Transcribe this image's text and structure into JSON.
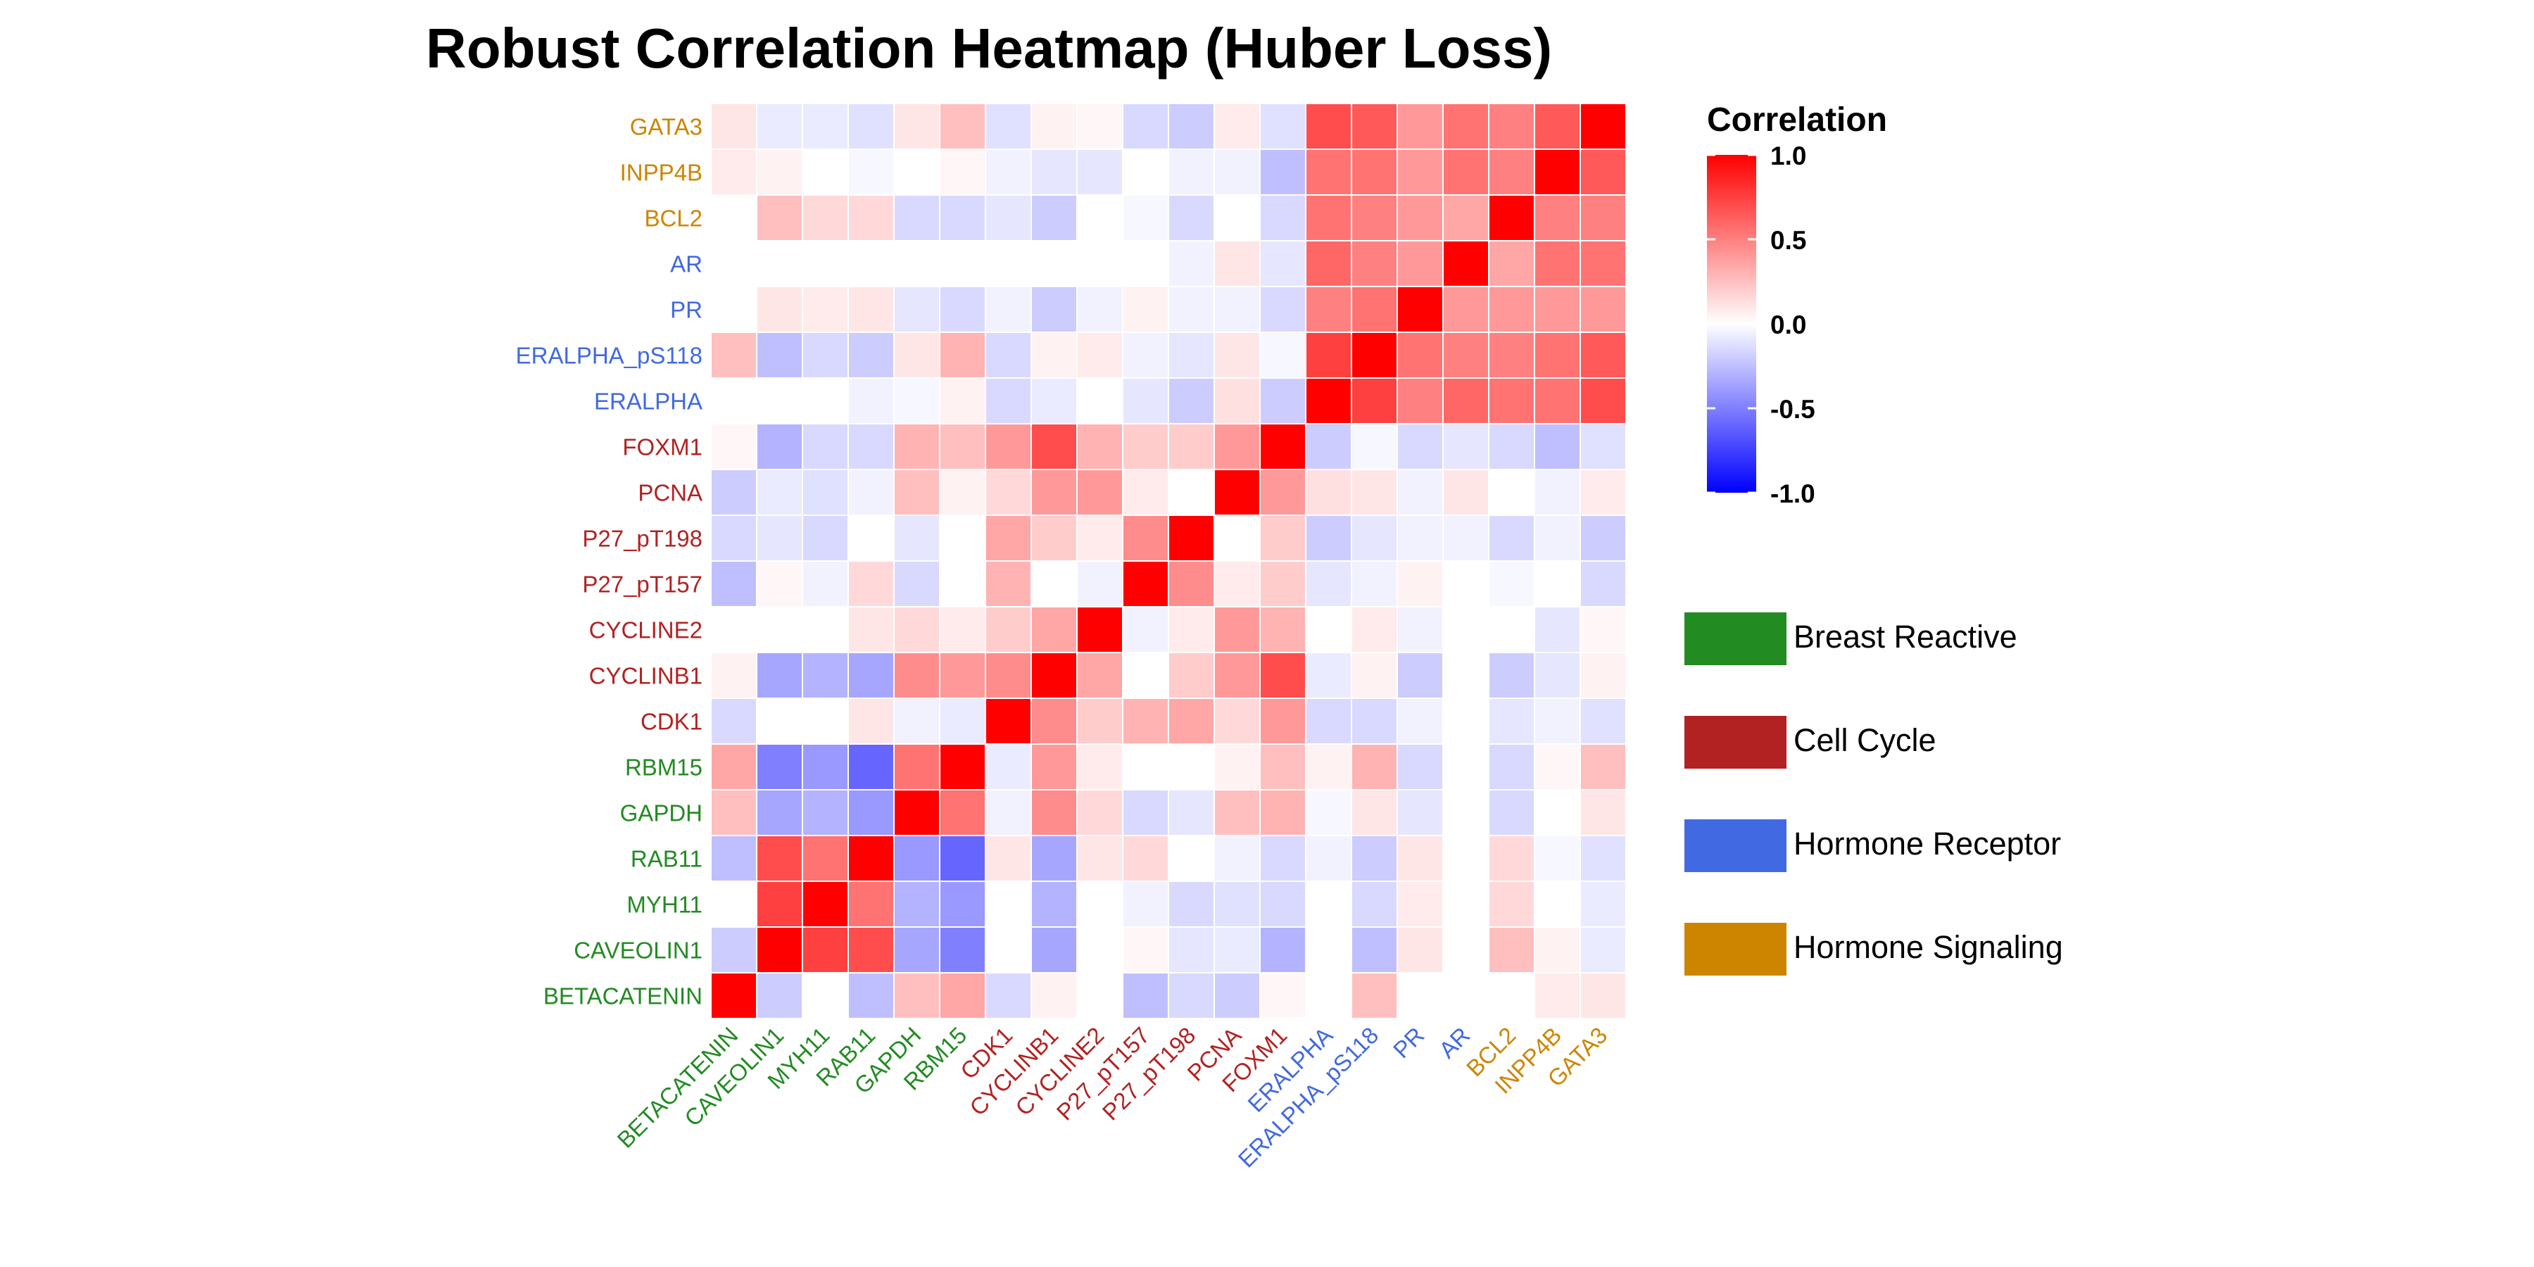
{
  "chart_data": {
    "type": "heatmap",
    "title": "Robust Correlation Heatmap (Huber Loss)",
    "xlabel": "",
    "ylabel": "",
    "variables": [
      "BETACATENIN",
      "CAVEOLIN1",
      "MYH11",
      "RAB11",
      "GAPDH",
      "RBM15",
      "CDK1",
      "CYCLINB1",
      "CYCLINE2",
      "P27_pT157",
      "P27_pT198",
      "PCNA",
      "FOXM1",
      "ERALPHA",
      "ERALPHA_pS118",
      "PR",
      "AR",
      "BCL2",
      "INPP4B",
      "GATA3"
    ],
    "groups_of_variables": [
      "Breast Reactive",
      "Breast Reactive",
      "Breast Reactive",
      "Breast Reactive",
      "Breast Reactive",
      "Breast Reactive",
      "Cell Cycle",
      "Cell Cycle",
      "Cell Cycle",
      "Cell Cycle",
      "Cell Cycle",
      "Cell Cycle",
      "Cell Cycle",
      "Hormone Receptor",
      "Hormone Receptor",
      "Hormone Receptor",
      "Hormone Receptor",
      "Hormone Signaling",
      "Hormone Signaling",
      "Hormone Signaling"
    ],
    "groups": [
      {
        "name": "Breast Reactive",
        "color": "#228B22"
      },
      {
        "name": "Cell Cycle",
        "color": "#B22222"
      },
      {
        "name": "Hormone Receptor",
        "color": "#4169E1"
      },
      {
        "name": "Hormone Signaling",
        "color": "#CD8500"
      }
    ],
    "row_order_top_to_bottom": [
      "GATA3",
      "INPP4B",
      "BCL2",
      "AR",
      "PR",
      "ERALPHA_pS118",
      "ERALPHA",
      "FOXM1",
      "PCNA",
      "P27_pT198",
      "P27_pT157",
      "CYCLINE2",
      "CYCLINB1",
      "CDK1",
      "RBM15",
      "GAPDH",
      "RAB11",
      "MYH11",
      "CAVEOLIN1",
      "BETACATENIN"
    ],
    "values": [
      [
        1.0,
        -0.2,
        0.0,
        -0.25,
        0.25,
        0.35,
        -0.15,
        0.05,
        0.0,
        -0.25,
        -0.15,
        -0.2,
        0.03,
        0.0,
        0.25,
        0.0,
        0.0,
        0.0,
        0.08,
        0.1
      ],
      [
        -0.2,
        1.0,
        0.75,
        0.7,
        -0.35,
        -0.5,
        0.0,
        -0.35,
        0.0,
        0.03,
        -0.1,
        -0.08,
        -0.3,
        0.0,
        -0.25,
        0.1,
        0.0,
        0.25,
        0.05,
        -0.08
      ],
      [
        0.0,
        0.75,
        1.0,
        0.55,
        -0.3,
        -0.4,
        0.0,
        -0.3,
        0.0,
        -0.05,
        -0.15,
        -0.12,
        -0.15,
        0.0,
        -0.15,
        0.08,
        0.0,
        0.15,
        0.0,
        -0.08
      ],
      [
        -0.25,
        0.7,
        0.55,
        1.0,
        -0.4,
        -0.6,
        0.1,
        -0.35,
        0.1,
        0.15,
        0.0,
        -0.05,
        -0.15,
        -0.05,
        -0.2,
        0.1,
        0.0,
        0.15,
        -0.03,
        -0.12
      ],
      [
        0.25,
        -0.35,
        -0.3,
        -0.4,
        1.0,
        0.55,
        -0.05,
        0.45,
        0.15,
        -0.15,
        -0.1,
        0.25,
        0.3,
        -0.03,
        0.1,
        -0.1,
        0.0,
        -0.15,
        0.0,
        0.1
      ],
      [
        0.35,
        -0.5,
        -0.4,
        -0.6,
        0.55,
        1.0,
        -0.08,
        0.4,
        0.08,
        0.0,
        0.0,
        0.05,
        0.25,
        0.05,
        0.3,
        -0.15,
        0.0,
        -0.15,
        0.03,
        0.25
      ],
      [
        -0.15,
        0.0,
        0.0,
        0.1,
        -0.05,
        -0.08,
        1.0,
        0.45,
        0.2,
        0.3,
        0.35,
        0.15,
        0.4,
        -0.15,
        -0.15,
        -0.05,
        0.0,
        -0.1,
        -0.05,
        -0.12
      ],
      [
        0.05,
        -0.35,
        -0.3,
        -0.35,
        0.45,
        0.4,
        0.45,
        1.0,
        0.35,
        0.0,
        0.2,
        0.4,
        0.7,
        -0.08,
        0.05,
        -0.2,
        0.0,
        -0.2,
        -0.1,
        0.05
      ],
      [
        0.0,
        0.0,
        0.0,
        0.1,
        0.15,
        0.08,
        0.2,
        0.35,
        1.0,
        -0.05,
        0.08,
        0.4,
        0.3,
        0.0,
        0.08,
        -0.05,
        0.0,
        0.0,
        -0.1,
        0.03
      ],
      [
        -0.25,
        0.03,
        -0.05,
        0.15,
        -0.15,
        0.0,
        0.3,
        0.0,
        -0.05,
        1.0,
        0.45,
        0.08,
        0.2,
        -0.1,
        -0.05,
        0.05,
        0.0,
        -0.03,
        0.0,
        -0.15
      ],
      [
        -0.15,
        -0.1,
        -0.15,
        0.0,
        -0.1,
        0.0,
        0.35,
        0.2,
        0.08,
        0.45,
        1.0,
        0.0,
        0.2,
        -0.2,
        -0.1,
        -0.05,
        -0.05,
        -0.15,
        -0.05,
        -0.2
      ],
      [
        -0.2,
        -0.08,
        -0.12,
        -0.05,
        0.25,
        0.05,
        0.15,
        0.4,
        0.4,
        0.08,
        0.0,
        1.0,
        0.4,
        0.12,
        0.1,
        -0.05,
        0.1,
        0.0,
        -0.05,
        0.08
      ],
      [
        0.03,
        -0.3,
        -0.15,
        -0.15,
        0.3,
        0.25,
        0.4,
        0.7,
        0.3,
        0.2,
        0.2,
        0.4,
        1.0,
        -0.2,
        -0.03,
        -0.15,
        -0.1,
        -0.15,
        -0.25,
        -0.12
      ],
      [
        0.0,
        0.0,
        0.0,
        -0.05,
        -0.03,
        0.05,
        -0.15,
        -0.08,
        0.0,
        -0.1,
        -0.2,
        0.12,
        -0.2,
        1.0,
        0.75,
        0.5,
        0.6,
        0.55,
        0.55,
        0.7
      ],
      [
        0.25,
        -0.25,
        -0.15,
        -0.2,
        0.1,
        0.3,
        -0.15,
        0.05,
        0.08,
        -0.05,
        -0.1,
        0.1,
        -0.03,
        0.75,
        1.0,
        0.55,
        0.5,
        0.5,
        0.55,
        0.65
      ],
      [
        0.0,
        0.1,
        0.08,
        0.1,
        -0.1,
        -0.15,
        -0.05,
        -0.2,
        -0.05,
        0.05,
        -0.05,
        -0.05,
        -0.15,
        0.5,
        0.55,
        1.0,
        0.4,
        0.4,
        0.4,
        0.4
      ],
      [
        0.0,
        0.0,
        0.0,
        0.0,
        0.0,
        0.0,
        0.0,
        0.0,
        0.0,
        0.0,
        -0.05,
        0.1,
        -0.1,
        0.6,
        0.5,
        0.4,
        1.0,
        0.35,
        0.55,
        0.55
      ],
      [
        0.0,
        0.25,
        0.15,
        0.15,
        -0.15,
        -0.15,
        -0.1,
        -0.2,
        0.0,
        -0.03,
        -0.15,
        0.0,
        -0.15,
        0.55,
        0.5,
        0.4,
        0.35,
        1.0,
        0.5,
        0.5
      ],
      [
        0.08,
        0.05,
        0.0,
        -0.03,
        0.0,
        0.03,
        -0.05,
        -0.1,
        -0.1,
        0.0,
        -0.05,
        -0.05,
        -0.25,
        0.55,
        0.55,
        0.4,
        0.55,
        0.5,
        1.0,
        0.65
      ],
      [
        0.1,
        -0.08,
        -0.08,
        -0.12,
        0.1,
        0.25,
        -0.12,
        0.05,
        0.03,
        -0.15,
        -0.2,
        0.08,
        -0.12,
        0.7,
        0.65,
        0.4,
        0.55,
        0.5,
        0.65,
        1.0
      ]
    ],
    "color_scale": {
      "title": "Correlation",
      "min": -1.0,
      "max": 1.0,
      "low_color": "#0000FF",
      "mid_color": "#FFFFFF",
      "high_color": "#FF0000",
      "ticks": [
        "1.0",
        "0.5",
        "0.0",
        "-0.5",
        "-1.0"
      ],
      "tick_values": [
        1.0,
        0.5,
        0.0,
        -0.5,
        -1.0
      ]
    },
    "legend_placement": "right",
    "grid": false
  }
}
